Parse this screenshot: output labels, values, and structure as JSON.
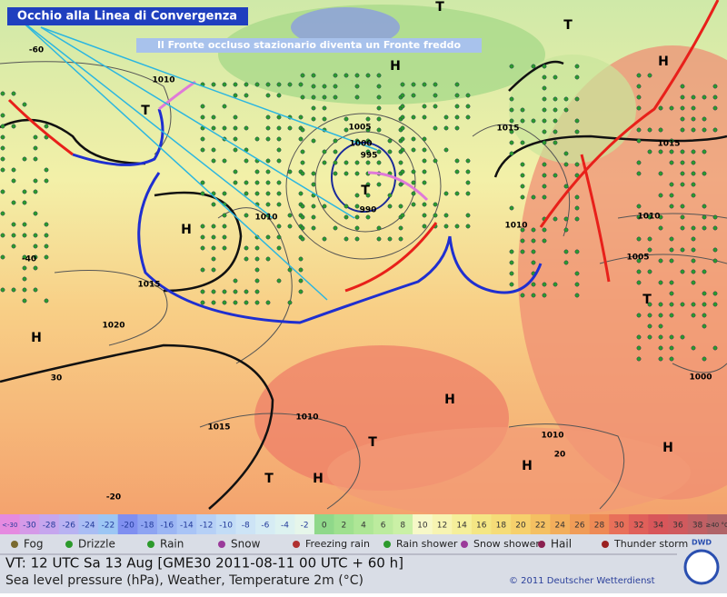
{
  "header": {
    "title": "Occhio alla Linea di Convergenza",
    "subtitle": "Il Fronte occluso stazionario diventa un Fronte freddo"
  },
  "map": {
    "labels": [
      "H",
      "H",
      "H",
      "H",
      "H",
      "H",
      "H",
      "H",
      "T",
      "T",
      "T",
      "T",
      "T",
      "T",
      "T",
      "1010",
      "1005",
      "1000",
      "995",
      "990",
      "1010",
      "1015",
      "1020",
      "30",
      "1015",
      "1010",
      "1010",
      "1015",
      "1015",
      "1010",
      "1005",
      "1000",
      "1010",
      "20",
      "-20",
      "-40",
      "-60"
    ]
  },
  "scale": {
    "labels": [
      "<-30",
      "-30",
      "-28",
      "-26",
      "-24",
      "-22",
      "-20",
      "-18",
      "-16",
      "-14",
      "-12",
      "-10",
      "-8",
      "-6",
      "-4",
      "-2",
      "0",
      "2",
      "4",
      "6",
      "8",
      "10",
      "12",
      "14",
      "16",
      "18",
      "20",
      "22",
      "24",
      "26",
      "28",
      "30",
      "32",
      "34",
      "36",
      "38",
      "≥40 °C"
    ]
  },
  "legend": {
    "items": [
      "Fog",
      "Drizzle",
      "Rain",
      "Snow",
      "Freezing rain",
      "Rain shower",
      "Snow shower",
      "Hail",
      "Thunder storm"
    ]
  },
  "footer": {
    "valid_time": "VT: 12 UTC Sa  13 Aug [GME30 2011-08-11  00 UTC + 60 h]",
    "description": "Sea level pressure (hPa), Weather, Temperature 2m (°C)",
    "copyright": "© 2011 Deutscher Wetterdienst",
    "logo": "DWD"
  }
}
